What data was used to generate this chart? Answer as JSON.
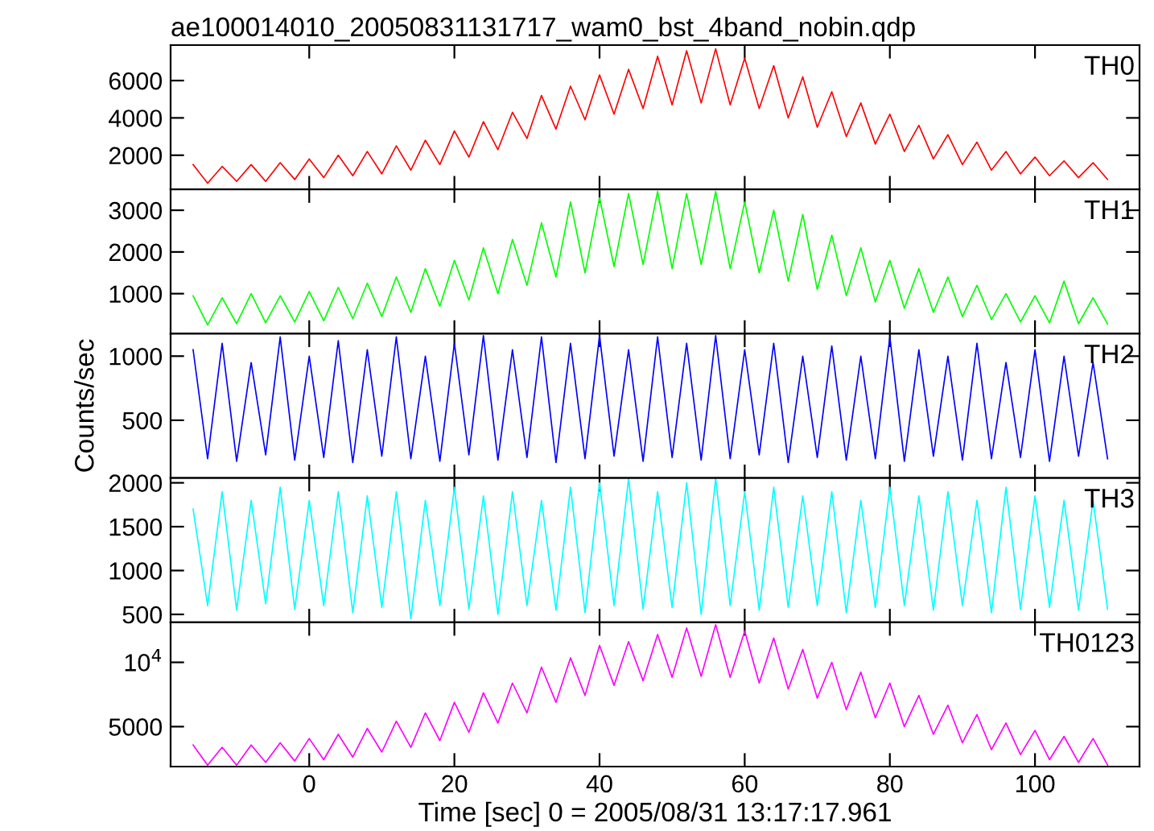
{
  "chart_data": [
    {
      "type": "line",
      "title": "ae100014010_20050831131717_wam0_bst_4band_nobin.qdp",
      "annotations": [
        "TH0"
      ],
      "tick_labels": "y",
      "xlim": [
        -19.1,
        114.4
      ],
      "xticks": [
        0,
        20,
        40,
        60,
        80,
        100
      ],
      "ylim": [
        170,
        7900
      ],
      "yticks": [
        2000,
        4000,
        6000
      ],
      "x": [
        -16,
        -14,
        -12,
        -10,
        -8,
        -6,
        -4,
        -2,
        0,
        2,
        4,
        6,
        8,
        10,
        12,
        14,
        16,
        18,
        20,
        22,
        24,
        26,
        28,
        30,
        32,
        34,
        36,
        38,
        40,
        42,
        44,
        46,
        48,
        50,
        52,
        54,
        56,
        58,
        60,
        62,
        64,
        66,
        68,
        70,
        72,
        74,
        76,
        78,
        80,
        82,
        84,
        86,
        88,
        90,
        92,
        94,
        96,
        98,
        100,
        102,
        104,
        106,
        108,
        110
      ],
      "series": [
        {
          "color": "#ff0000",
          "values": [
            1500,
            500,
            1400,
            600,
            1500,
            600,
            1600,
            700,
            1800,
            800,
            2000,
            900,
            2200,
            1000,
            2500,
            1200,
            2800,
            1500,
            3300,
            1900,
            3800,
            2300,
            4300,
            2900,
            5200,
            3400,
            5700,
            3900,
            6300,
            4200,
            6600,
            4500,
            7300,
            4700,
            7600,
            4800,
            7700,
            4700,
            7200,
            4500,
            6800,
            4000,
            6200,
            3500,
            5400,
            3000,
            4800,
            2600,
            4200,
            2200,
            3600,
            1800,
            3100,
            1500,
            2700,
            1200,
            2200,
            1000,
            1900,
            900,
            1700,
            800,
            1600,
            700
          ]
        }
      ]
    },
    {
      "type": "line",
      "annotations": [
        "TH1"
      ],
      "tick_labels": "y",
      "xlim": [
        -19.1,
        114.4
      ],
      "xticks": [
        0,
        20,
        40,
        60,
        80,
        100
      ],
      "ylim": [
        40,
        3500
      ],
      "yticks": [
        1000,
        2000,
        3000
      ],
      "x": [
        -16,
        -14,
        -12,
        -10,
        -8,
        -6,
        -4,
        -2,
        0,
        2,
        4,
        6,
        8,
        10,
        12,
        14,
        16,
        18,
        20,
        22,
        24,
        26,
        28,
        30,
        32,
        34,
        36,
        38,
        40,
        42,
        44,
        46,
        48,
        50,
        52,
        54,
        56,
        58,
        60,
        62,
        64,
        66,
        68,
        70,
        72,
        74,
        76,
        78,
        80,
        82,
        84,
        86,
        88,
        90,
        92,
        94,
        96,
        98,
        100,
        102,
        104,
        106,
        108,
        110
      ],
      "series": [
        {
          "color": "#00ff00",
          "values": [
            950,
            250,
            900,
            280,
            1000,
            300,
            950,
            320,
            1050,
            350,
            1150,
            400,
            1250,
            450,
            1400,
            550,
            1600,
            700,
            1800,
            850,
            2100,
            1000,
            2300,
            1200,
            2700,
            1400,
            3200,
            1500,
            3300,
            1650,
            3400,
            1700,
            3450,
            1600,
            3400,
            1700,
            3450,
            1600,
            3200,
            1500,
            3000,
            1300,
            2900,
            1100,
            2400,
            950,
            2100,
            800,
            1800,
            650,
            1600,
            550,
            1400,
            450,
            1200,
            380,
            1000,
            320,
            950,
            300,
            1300,
            280,
            900,
            270
          ]
        }
      ]
    },
    {
      "type": "line",
      "annotations": [
        "TH2"
      ],
      "ylabel": "Counts/sec",
      "tick_labels": "y",
      "xlim": [
        -19.1,
        114.4
      ],
      "xticks": [
        0,
        20,
        40,
        60,
        80,
        100
      ],
      "ylim": [
        50,
        1175
      ],
      "yticks": [
        500,
        1000
      ],
      "x": [
        -16,
        -14,
        -12,
        -10,
        -8,
        -6,
        -4,
        -2,
        0,
        2,
        4,
        6,
        8,
        10,
        12,
        14,
        16,
        18,
        20,
        22,
        24,
        26,
        28,
        30,
        32,
        34,
        36,
        38,
        40,
        42,
        44,
        46,
        48,
        50,
        52,
        54,
        56,
        58,
        60,
        62,
        64,
        66,
        68,
        70,
        72,
        74,
        76,
        78,
        80,
        82,
        84,
        86,
        88,
        90,
        92,
        94,
        96,
        98,
        100,
        102,
        104,
        106,
        108,
        110
      ],
      "series": [
        {
          "color": "#0000ff",
          "values": [
            1050,
            200,
            1100,
            180,
            950,
            230,
            1150,
            190,
            1000,
            210,
            1120,
            170,
            1050,
            220,
            1150,
            200,
            1000,
            180,
            1100,
            230,
            1160,
            190,
            1050,
            210,
            1150,
            170,
            1100,
            200,
            1160,
            220,
            1050,
            180,
            1150,
            210,
            1100,
            190,
            1160,
            200,
            1050,
            230,
            1100,
            170,
            1000,
            210,
            1080,
            190,
            1000,
            200,
            1150,
            180,
            1050,
            220,
            1000,
            190,
            1100,
            200,
            950,
            210,
            1050,
            180,
            1000,
            220,
            950,
            200
          ]
        }
      ]
    },
    {
      "type": "line",
      "annotations": [
        "TH3"
      ],
      "tick_labels": "y",
      "xlim": [
        -19.1,
        114.4
      ],
      "xticks": [
        0,
        20,
        40,
        60,
        80,
        100
      ],
      "ylim": [
        410,
        2055
      ],
      "yticks": [
        500,
        1000,
        1500,
        2000
      ],
      "x": [
        -16,
        -14,
        -12,
        -10,
        -8,
        -6,
        -4,
        -2,
        0,
        2,
        4,
        6,
        8,
        10,
        12,
        14,
        16,
        18,
        20,
        22,
        24,
        26,
        28,
        30,
        32,
        34,
        36,
        38,
        40,
        42,
        44,
        46,
        48,
        50,
        52,
        54,
        56,
        58,
        60,
        62,
        64,
        66,
        68,
        70,
        72,
        74,
        76,
        78,
        80,
        82,
        84,
        86,
        88,
        90,
        92,
        94,
        96,
        98,
        100,
        102,
        104,
        106,
        108,
        110
      ],
      "series": [
        {
          "color": "#00ffff",
          "values": [
            1700,
            600,
            1900,
            550,
            1800,
            620,
            1950,
            560,
            1800,
            600,
            1900,
            520,
            1850,
            580,
            1900,
            450,
            1800,
            600,
            1950,
            560,
            1850,
            500,
            1900,
            600,
            1800,
            550,
            1950,
            520,
            2000,
            600,
            2050,
            560,
            1900,
            580,
            2000,
            500,
            2050,
            600,
            1900,
            550,
            1950,
            580,
            1850,
            600,
            1900,
            520,
            1800,
            580,
            1950,
            600,
            1850,
            550,
            1900,
            600,
            1800,
            520,
            1950,
            560,
            1850,
            580,
            1800,
            550,
            1800,
            560
          ]
        }
      ]
    },
    {
      "type": "line",
      "annotations": [
        "TH0123"
      ],
      "xlabel": "Time [sec] 0 = 2005/08/31 13:17:17.961",
      "log": "y",
      "xlim": [
        -19.1,
        114.4
      ],
      "xticks": [
        0,
        20,
        40,
        60,
        80,
        100
      ],
      "ylim": [
        3250,
        15400
      ],
      "yticks": [
        5000,
        {
          "value": 10000,
          "label": "10$^{4}$"
        }
      ],
      "x": [
        -16,
        -14,
        -12,
        -10,
        -8,
        -6,
        -4,
        -2,
        0,
        2,
        4,
        6,
        8,
        10,
        12,
        14,
        16,
        18,
        20,
        22,
        24,
        26,
        28,
        30,
        32,
        34,
        36,
        38,
        40,
        42,
        44,
        46,
        48,
        50,
        52,
        54,
        56,
        58,
        60,
        62,
        64,
        66,
        68,
        70,
        72,
        74,
        76,
        78,
        80,
        82,
        84,
        86,
        88,
        90,
        92,
        94,
        96,
        98,
        100,
        102,
        104,
        106,
        108,
        110
      ],
      "series": [
        {
          "color": "#ff00ff",
          "values": [
            4100,
            3300,
            4000,
            3300,
            4100,
            3400,
            4200,
            3450,
            4400,
            3500,
            4600,
            3600,
            4900,
            3800,
            5300,
            4000,
            5800,
            4300,
            6500,
            4700,
            7200,
            5200,
            8000,
            5800,
            9500,
            6500,
            10500,
            7000,
            12000,
            7800,
            12500,
            8200,
            13500,
            8500,
            14500,
            8600,
            15000,
            8500,
            14000,
            8000,
            13000,
            7500,
            11500,
            6800,
            10000,
            6000,
            9000,
            5500,
            8000,
            5000,
            7000,
            4600,
            6300,
            4200,
            5700,
            3900,
            5200,
            3700,
            4800,
            3500,
            4500,
            3400,
            4400,
            3300
          ]
        }
      ]
    }
  ]
}
